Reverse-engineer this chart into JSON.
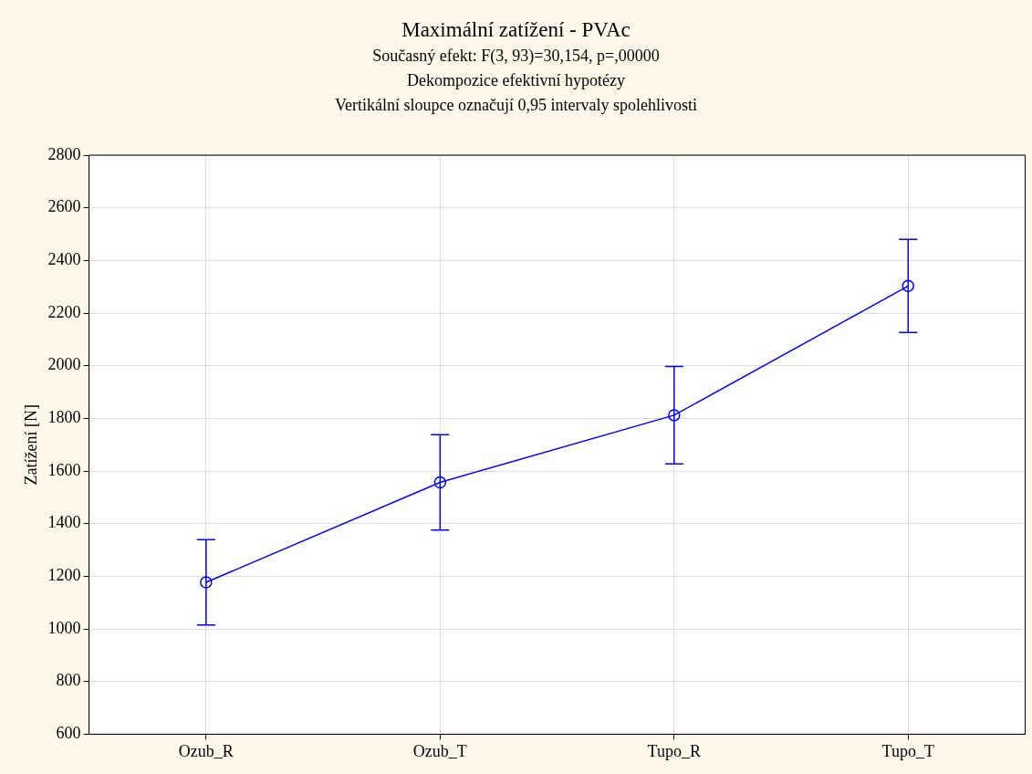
{
  "chart_data": {
    "type": "line",
    "title": "Maximální zatížení - PVAc",
    "annotations": [
      "Současný efekt: F(3, 93)=30,154, p=,00000",
      "Dekompozice efektivní hypotézy",
      "Vertikální sloupce označují 0,95 intervaly spolehlivosti"
    ],
    "ylabel": "Zatížení [N]",
    "categories": [
      "Ozub_R",
      "Ozub_T",
      "Tupo_R",
      "Tupo_T"
    ],
    "series": [
      {
        "color": "#0000ff",
        "values": [
          1177,
          1557,
          1812,
          2303
        ],
        "errors": [
          162,
          181,
          185,
          177
        ]
      }
    ],
    "ylim": [
      600,
      2800
    ],
    "yticks": [
      600,
      800,
      1000,
      1200,
      1400,
      1600,
      1800,
      2000,
      2200,
      2400,
      2600,
      2800
    ],
    "grid": true,
    "legend": false,
    "marker": "circle",
    "line_style": "solid"
  }
}
